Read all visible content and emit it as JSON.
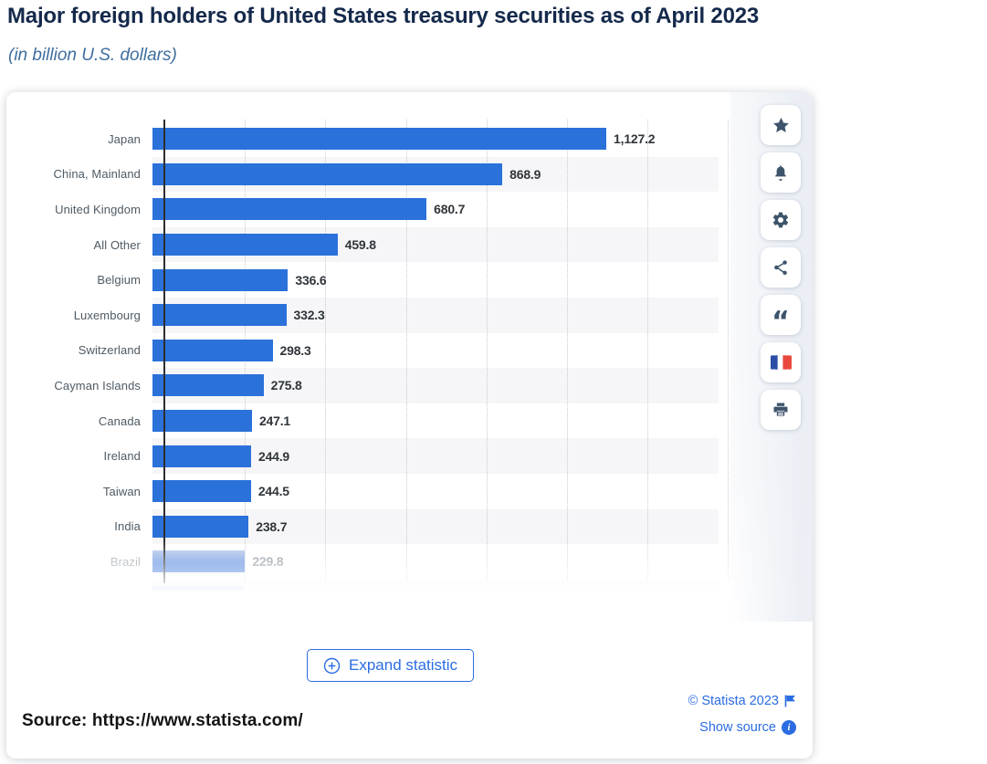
{
  "page": {
    "title": "Major foreign holders of United States treasury securities as of April 2023",
    "subtitle": "(in billion U.S. dollars)"
  },
  "chart_data": {
    "type": "bar",
    "orientation": "horizontal",
    "title": "Major foreign holders of United States treasury securities as of April 2023",
    "subtitle": "(in billion U.S. dollars)",
    "unit": "billion U.S. dollars",
    "categories": [
      "Japan",
      "China, Mainland",
      "United Kingdom",
      "All Other",
      "Belgium",
      "Luxembourg",
      "Switzerland",
      "Cayman Islands",
      "Canada",
      "Ireland",
      "Taiwan",
      "India",
      "Brazil"
    ],
    "values": [
      1127.2,
      868.9,
      680.7,
      459.8,
      336.6,
      332.3,
      298.3,
      275.8,
      247.1,
      244.9,
      244.5,
      238.7,
      229.8
    ],
    "value_labels": [
      "1,127.2",
      "868.9",
      "680.7",
      "459.8",
      "336.6",
      "332.3",
      "298.3",
      "275.8",
      "247.1",
      "244.9",
      "244.5",
      "238.7",
      "229.8"
    ],
    "xlabel": "",
    "ylabel": "",
    "xlim": [
      0,
      1406
    ],
    "grid_ticks": [
      200,
      400,
      600,
      800,
      1000,
      1200,
      1400
    ],
    "grid": "vertical-dotted",
    "legend": false,
    "bar_color": "#2a71da",
    "stripe_color": "#f6f6f8",
    "faded_last_row": true,
    "truncated_more_rows": true
  },
  "toolbar": {
    "buttons": [
      {
        "id": "favorite",
        "icon": "star-icon"
      },
      {
        "id": "alerts",
        "icon": "bell-icon"
      },
      {
        "id": "settings",
        "icon": "gear-icon"
      },
      {
        "id": "share",
        "icon": "share-icon"
      },
      {
        "id": "cite",
        "icon": "quote-icon"
      },
      {
        "id": "language-french",
        "icon": "france-flag-icon"
      },
      {
        "id": "print",
        "icon": "printer-icon"
      }
    ]
  },
  "footer": {
    "expand_button": "Expand statistic",
    "copyright": "© Statista 2023",
    "show_source": "Show source"
  },
  "source": {
    "label": "Source:",
    "url": "https://www.statista.com/"
  },
  "colors": {
    "bar": "#2a71da",
    "accent_blue": "#2b6ce3",
    "title": "#14294b",
    "subtitle": "#3f6e9e",
    "icon": "#3e546b"
  }
}
